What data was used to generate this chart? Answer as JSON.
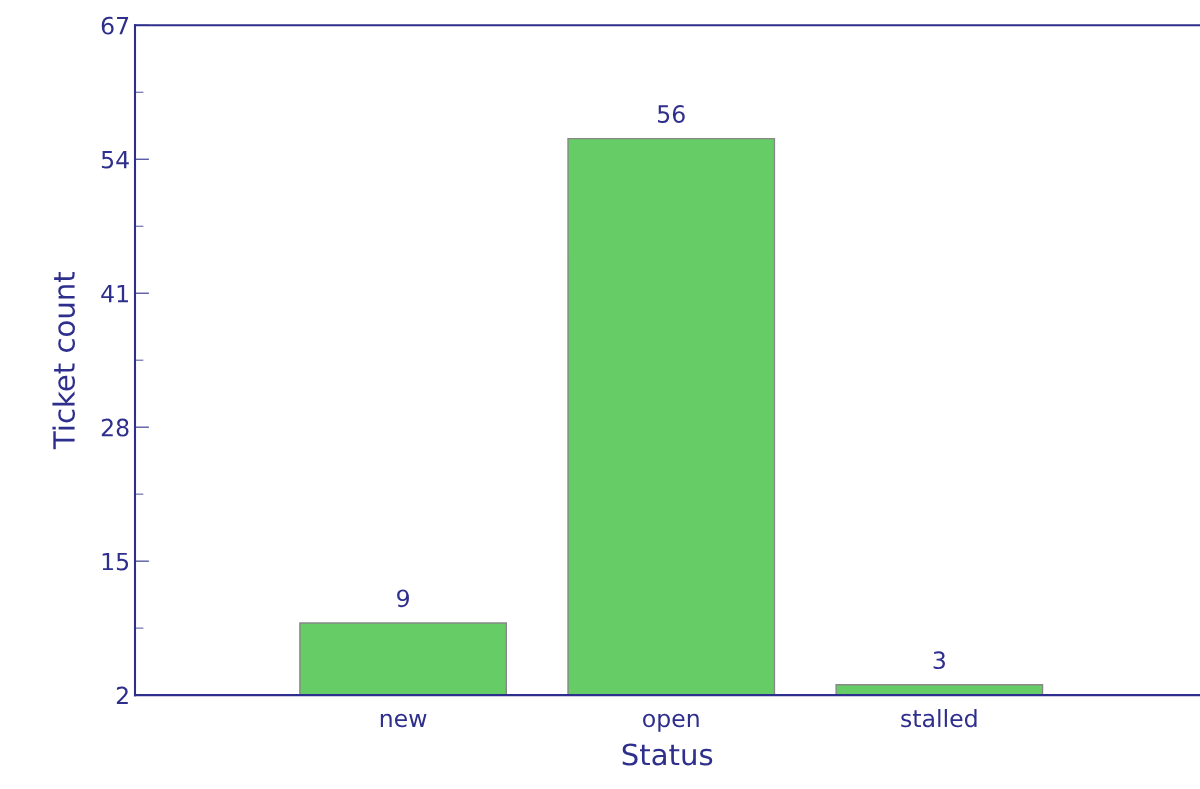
{
  "chart_data": {
    "type": "bar",
    "xlabel": "Status",
    "ylabel": "Ticket count",
    "categories": [
      "new",
      "open",
      "stalled"
    ],
    "values": [
      9,
      56,
      3
    ],
    "color": "#66cc66",
    "ylim": [
      2,
      67
    ],
    "yticks": [
      2,
      15,
      28,
      41,
      54,
      67
    ],
    "grid": false,
    "data_labels": true
  }
}
